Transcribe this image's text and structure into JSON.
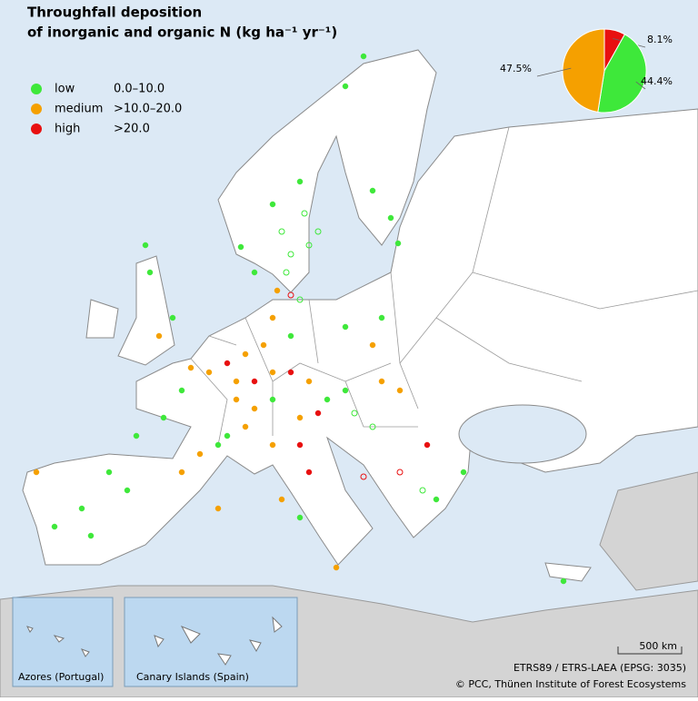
{
  "map": {
    "title": [
      "Throughfall deposition",
      "of inorganic and organic N (kg ha⁻¹ yr⁻¹)"
    ],
    "legend": [
      {
        "name": "low",
        "range": "0.0–10.0",
        "color": "#3ee83a"
      },
      {
        "name": "medium",
        "range": ">10.0–20.0",
        "color": "#f5a000"
      },
      {
        "name": "high",
        "range": ">20.0",
        "color": "#e81010"
      }
    ],
    "insets": [
      "Azores (Portugal)",
      "Canary Islands (Spain)"
    ],
    "scale": "500 km",
    "credits": [
      "ETRS89 / ETRS-LAEA (EPSG: 3035)",
      "© PCC, Thünen Institute of Forest Ecosystems"
    ]
  },
  "chart_data": {
    "type": "pie",
    "categories": [
      "high",
      "low",
      "medium"
    ],
    "values": [
      8.1,
      44.4,
      47.5
    ],
    "value_labels": [
      "8.1%",
      "44.4%",
      "47.5%"
    ],
    "colors": [
      "#e81010",
      "#3ee83a",
      "#f5a000"
    ]
  }
}
